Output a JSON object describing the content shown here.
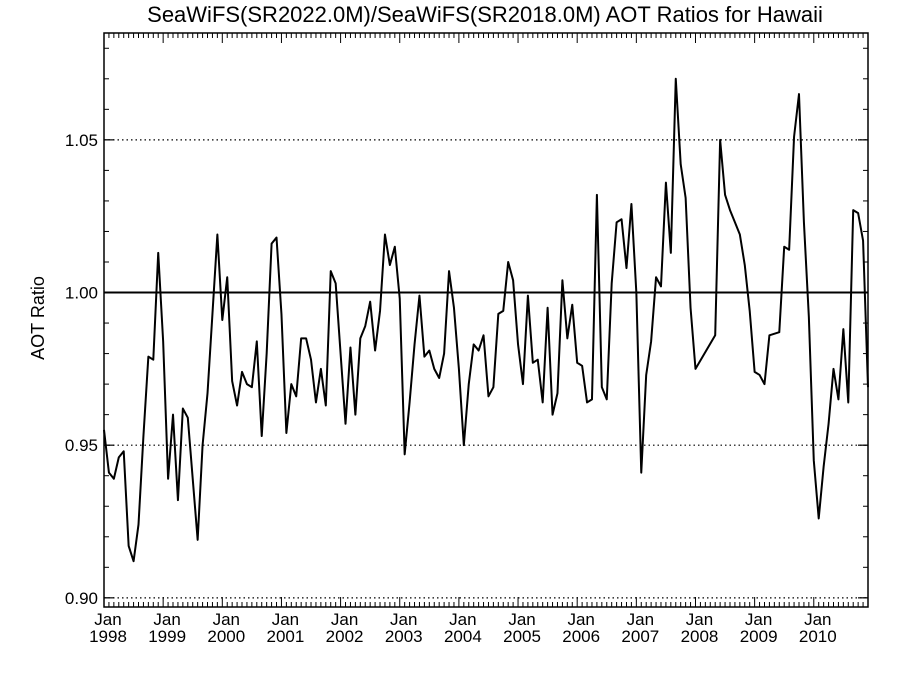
{
  "chart_data": {
    "type": "line",
    "title": "SeaWiFS(SR2022.0M)/SeaWiFS(SR2018.0M)  AOT Ratios for Hawaii",
    "xlabel": "",
    "ylabel": "AOT Ratio",
    "ylim": [
      0.897,
      1.085
    ],
    "xlim": [
      "1998-01",
      "2010-12"
    ],
    "yticks": [
      "0.90",
      "0.95",
      "1.00",
      "1.05"
    ],
    "ytick_values": [
      0.9,
      0.95,
      1.0,
      1.05
    ],
    "xticks": [
      {
        "month": "Jan",
        "year": "1998"
      },
      {
        "month": "Jan",
        "year": "1999"
      },
      {
        "month": "Jan",
        "year": "2000"
      },
      {
        "month": "Jan",
        "year": "2001"
      },
      {
        "month": "Jan",
        "year": "2002"
      },
      {
        "month": "Jan",
        "year": "2003"
      },
      {
        "month": "Jan",
        "year": "2004"
      },
      {
        "month": "Jan",
        "year": "2005"
      },
      {
        "month": "Jan",
        "year": "2006"
      },
      {
        "month": "Jan",
        "year": "2007"
      },
      {
        "month": "Jan",
        "year": "2008"
      },
      {
        "month": "Jan",
        "year": "2009"
      },
      {
        "month": "Jan",
        "year": "2010"
      }
    ],
    "reference_line": 1.0,
    "grid": "dotted horizontal at 0.90, 0.95, 1.05",
    "line_color": "#000000",
    "series": [
      {
        "x": [
          "1998-01",
          "1998-02",
          "1998-03",
          "1998-04",
          "1998-05",
          "1998-06",
          "1998-07",
          "1998-08",
          "1998-09",
          "1998-10",
          "1998-11",
          "1998-12",
          "1999-01",
          "1999-02",
          "1999-03",
          "1999-04",
          "1999-05",
          "1999-06",
          "1999-07",
          "1999-08",
          "1999-09",
          "1999-10",
          "1999-11",
          "1999-12",
          "2000-01",
          "2000-02",
          "2000-03",
          "2000-04",
          "2000-05",
          "2000-06",
          "2000-07",
          "2000-08",
          "2000-09",
          "2000-10",
          "2000-11",
          "2000-12",
          "2001-01",
          "2001-02",
          "2001-03",
          "2001-04",
          "2001-05",
          "2001-06",
          "2001-07",
          "2001-08",
          "2001-09",
          "2001-10",
          "2001-11",
          "2001-12",
          "2002-01",
          "2002-02",
          "2002-03",
          "2002-04",
          "2002-05",
          "2002-06",
          "2002-07",
          "2002-08",
          "2002-09",
          "2002-10",
          "2002-11",
          "2002-12",
          "2003-01",
          "2003-02",
          "2003-03",
          "2003-04",
          "2003-05",
          "2003-06",
          "2003-07",
          "2003-08",
          "2003-09",
          "2003-10",
          "2003-11",
          "2003-12",
          "2004-01",
          "2004-02",
          "2004-03",
          "2004-04",
          "2004-05",
          "2004-06",
          "2004-07",
          "2004-08",
          "2004-09",
          "2004-10",
          "2004-11",
          "2004-12",
          "2005-01",
          "2005-02",
          "2005-03",
          "2005-04",
          "2005-05",
          "2005-06",
          "2005-07",
          "2005-08",
          "2005-09",
          "2005-10",
          "2005-11",
          "2005-12",
          "2006-01",
          "2006-02",
          "2006-03",
          "2006-04",
          "2006-05",
          "2006-06",
          "2006-07",
          "2006-08",
          "2006-09",
          "2006-10",
          "2006-11",
          "2006-12",
          "2007-01",
          "2007-02",
          "2007-03",
          "2007-04",
          "2007-05",
          "2007-06",
          "2007-07",
          "2007-08",
          "2007-09",
          "2007-10",
          "2007-11",
          "2007-12",
          "2008-01",
          "2008-05",
          "2008-06",
          "2008-07",
          "2008-08",
          "2008-09",
          "2008-10",
          "2008-11",
          "2008-12",
          "2009-01",
          "2009-02",
          "2009-03",
          "2009-04",
          "2009-06",
          "2009-07",
          "2009-08",
          "2009-09",
          "2009-10",
          "2009-11",
          "2009-12",
          "2010-01",
          "2010-02",
          "2010-03",
          "2010-04",
          "2010-05",
          "2010-06",
          "2010-07",
          "2010-08",
          "2010-09",
          "2010-10",
          "2010-11",
          "2010-12"
        ],
        "values": [
          0.955,
          0.941,
          0.939,
          0.946,
          0.948,
          0.917,
          0.912,
          0.924,
          0.953,
          0.979,
          0.978,
          1.013,
          0.984,
          0.939,
          0.96,
          0.932,
          0.962,
          0.959,
          0.939,
          0.919,
          0.95,
          0.967,
          0.993,
          1.019,
          0.991,
          1.005,
          0.971,
          0.963,
          0.974,
          0.97,
          0.969,
          0.984,
          0.953,
          0.98,
          1.016,
          1.018,
          0.993,
          0.954,
          0.97,
          0.966,
          0.985,
          0.985,
          0.978,
          0.964,
          0.975,
          0.963,
          1.007,
          1.003,
          0.98,
          0.957,
          0.982,
          0.96,
          0.985,
          0.989,
          0.997,
          0.981,
          0.994,
          1.019,
          1.009,
          1.015,
          0.998,
          0.947,
          0.964,
          0.983,
          0.999,
          0.979,
          0.981,
          0.975,
          0.972,
          0.98,
          1.007,
          0.995,
          0.975,
          0.95,
          0.97,
          0.983,
          0.981,
          0.986,
          0.966,
          0.969,
          0.993,
          0.994,
          1.01,
          1.004,
          0.983,
          0.97,
          0.999,
          0.977,
          0.978,
          0.964,
          0.995,
          0.96,
          0.967,
          1.004,
          0.985,
          0.996,
          0.977,
          0.976,
          0.964,
          0.965,
          1.032,
          0.969,
          0.965,
          1.003,
          1.023,
          1.024,
          1.008,
          1.029,
          1.0,
          0.941,
          0.973,
          0.984,
          1.005,
          1.002,
          1.036,
          1.013,
          1.07,
          1.042,
          1.031,
          0.995,
          0.975,
          0.986,
          1.05,
          1.032,
          1.027,
          1.023,
          1.019,
          1.009,
          0.994,
          0.974,
          0.973,
          0.97,
          0.986,
          0.987,
          1.015,
          1.014,
          1.051,
          1.065,
          1.023,
          0.992,
          0.945,
          0.926,
          0.943,
          0.957,
          0.975,
          0.965,
          0.988,
          0.964,
          1.027,
          1.026,
          1.017,
          0.969
        ]
      }
    ]
  }
}
